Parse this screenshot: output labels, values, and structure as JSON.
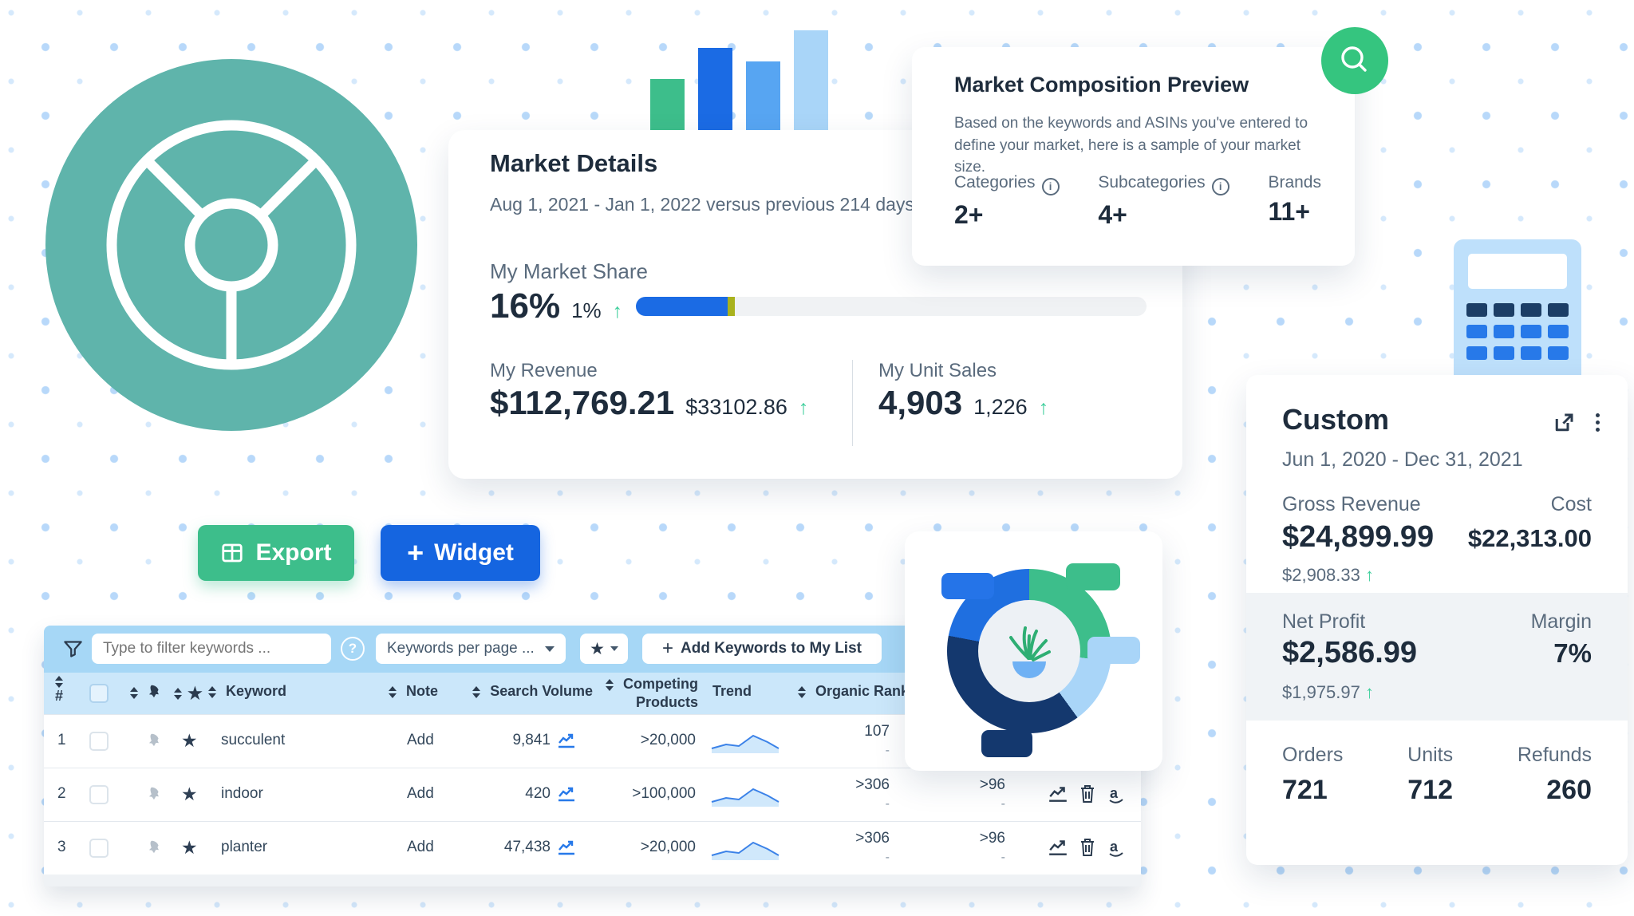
{
  "palette": {
    "blue": "#1B6BE4",
    "blue_mid": "#57A5F2",
    "blue_light": "#A9D5F8",
    "green": "#3DBE8B",
    "green_bright": "#35C57F",
    "teal": "#5FB4AB",
    "navy": "#14386E",
    "ink": "#1E2C3C",
    "slate": "#5A6B7D",
    "arrow_up_green": "#3ECF9C",
    "olive_marker": "#A9B21D",
    "toolbar_blue": "#A6D7F6",
    "table_header_blue": "#CBE7FA"
  },
  "icons": {
    "plus": "+",
    "star": "★",
    "question": "?",
    "info": "i",
    "up_arrow": "↑"
  },
  "market_details": {
    "title": "Market Details",
    "subtitle": "Aug 1, 2021 - Jan 1, 2022 versus previous 214 days",
    "market_share": {
      "label": "My Market Share",
      "value": "16%",
      "change": "1%",
      "fill_pct": 18
    },
    "revenue": {
      "label": "My Revenue",
      "value": "$112,769.21",
      "change": "$33102.86"
    },
    "unit_sales": {
      "label": "My Unit Sales",
      "value": "4,903",
      "change": "1,226"
    }
  },
  "market_composition": {
    "title": "Market Composition Preview",
    "description": "Based on the keywords and ASINs you've entered to define your market, here is a sample of your market size.",
    "stats": [
      {
        "label": "Categories",
        "value": "2+",
        "has_info": true
      },
      {
        "label": "Subcategories",
        "value": "4+",
        "has_info": true
      },
      {
        "label": "Brands",
        "value": "11+",
        "has_info": false
      }
    ]
  },
  "custom_card": {
    "title": "Custom",
    "date_range": "Jun 1, 2020 - Dec 31, 2021",
    "gross_revenue": {
      "label": "Gross Revenue",
      "value": "$24,899.99",
      "change": "$2,908.33"
    },
    "cost": {
      "label": "Cost",
      "value": "$22,313.00"
    },
    "net_profit": {
      "label": "Net Profit",
      "value": "$2,586.99",
      "change": "$1,975.97"
    },
    "margin": {
      "label": "Margin",
      "value": "7%"
    },
    "stats": [
      {
        "label": "Orders",
        "value": "721"
      },
      {
        "label": "Units",
        "value": "712"
      },
      {
        "label": "Refunds",
        "value": "260"
      }
    ]
  },
  "action_buttons": {
    "export_label": "Export",
    "widget_label": "Widget"
  },
  "keyword_table": {
    "toolbar": {
      "filter_placeholder": "Type to filter keywords ...",
      "per_page_label": "Keywords per page ...",
      "add_keywords_label": "Add Keywords to My List"
    },
    "headers": {
      "num": "#",
      "keyword": "Keyword",
      "note": "Note",
      "search_volume": "Search Volume",
      "competing_products": "Competing Products",
      "trend": "Trend",
      "organic_rank": "Organic Rank"
    },
    "rows": [
      {
        "num": "1",
        "keyword": "succulent",
        "note": "Add",
        "search_volume": "9,841",
        "competing_products": ">20,000",
        "organic_rank": "107",
        "organic_rank_change": "-",
        "sponsored_rank": "",
        "sponsored_rank_change": ""
      },
      {
        "num": "2",
        "keyword": "indoor",
        "note": "Add",
        "search_volume": "420",
        "competing_products": ">100,000",
        "organic_rank": ">306",
        "organic_rank_change": "-",
        "sponsored_rank": ">96",
        "sponsored_rank_change": "-"
      },
      {
        "num": "3",
        "keyword": "planter",
        "note": "Add",
        "search_volume": "47,438",
        "competing_products": ">20,000",
        "organic_rank": ">306",
        "organic_rank_change": "-",
        "sponsored_rank": ">96",
        "sponsored_rank_change": "-"
      }
    ]
  },
  "decor_charts": {
    "bars": {
      "type": "bar",
      "values": [
        66,
        105,
        88,
        127
      ],
      "colors": [
        "#3DBE8B",
        "#1B6BE4",
        "#57A5F2",
        "#A9D5F8"
      ]
    },
    "donut": {
      "type": "donut",
      "segments": [
        {
          "name": "green",
          "pct": 27,
          "color": "#3DBE8B"
        },
        {
          "name": "light-blue",
          "pct": 13,
          "color": "#A9D5F8"
        },
        {
          "name": "navy",
          "pct": 38,
          "color": "#14386E"
        },
        {
          "name": "blue",
          "pct": 22,
          "color": "#1F6FE0"
        }
      ]
    }
  }
}
